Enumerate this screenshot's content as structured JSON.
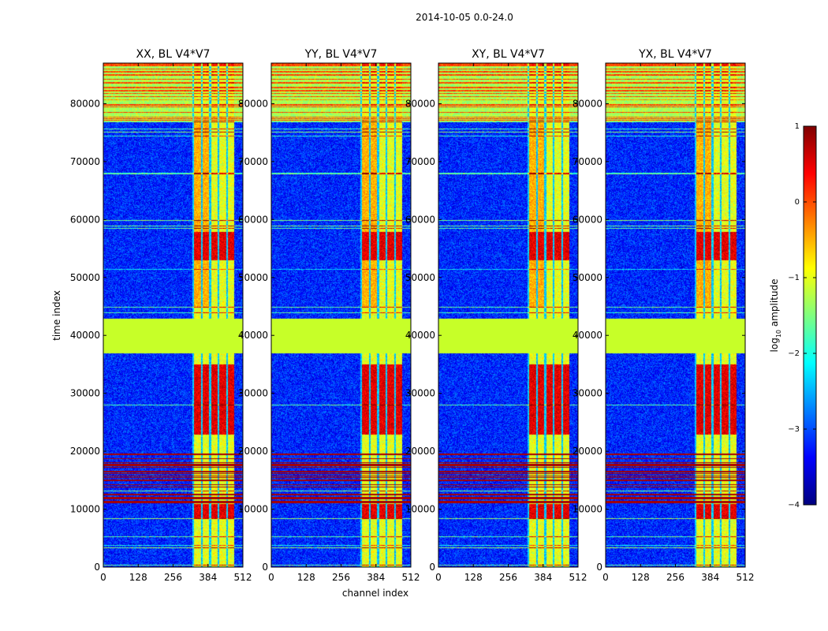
{
  "figure": {
    "suptitle": "2014-10-05 0.0-24.0"
  },
  "chart_data": {
    "type": "heatmap",
    "title": "2014-10-05 0.0-24.0",
    "xlabel": "channel index",
    "ylabel": "time index",
    "xlim": [
      0,
      512
    ],
    "ylim": [
      0,
      87000
    ],
    "xticks": [
      0,
      128,
      256,
      384,
      512
    ],
    "yticks": [
      0,
      10000,
      20000,
      30000,
      40000,
      50000,
      60000,
      70000,
      80000
    ],
    "panels": [
      {
        "title": "XX, BL V4*V7",
        "polarization": "XX"
      },
      {
        "title": "YY, BL V4*V7",
        "polarization": "YY"
      },
      {
        "title": "XY, BL V4*V7",
        "polarization": "XY"
      },
      {
        "title": "YX, BL V4*V7",
        "polarization": "YX"
      }
    ],
    "colorbar": {
      "label": "log₁₀ amplitude",
      "label_base": "log",
      "label_sub": "10",
      "label_rest": " amplitude",
      "min": -4,
      "max": 1,
      "ticks": [
        1,
        0,
        -1,
        -2,
        -3,
        -4
      ],
      "tick_labels": [
        "1",
        "0",
        "−1",
        "−2",
        "−3",
        "−4"
      ],
      "colormap": "jet"
    },
    "features": {
      "flagged_block_time_range": [
        37000,
        43000
      ],
      "flagged_block_value": -1.2,
      "rfi_channel_range": [
        326,
        480
      ],
      "dense_flag_time_range": [
        11000,
        20000
      ],
      "background_value": -3.2
    }
  },
  "colors": {
    "jet_stops": [
      "#00007f",
      "#0000ff",
      "#007fff",
      "#00ffff",
      "#7fff7f",
      "#ffff00",
      "#ff7f00",
      "#ff0000",
      "#7f0000"
    ],
    "flag_color": "#c7ff28",
    "background": "#ffffff"
  }
}
